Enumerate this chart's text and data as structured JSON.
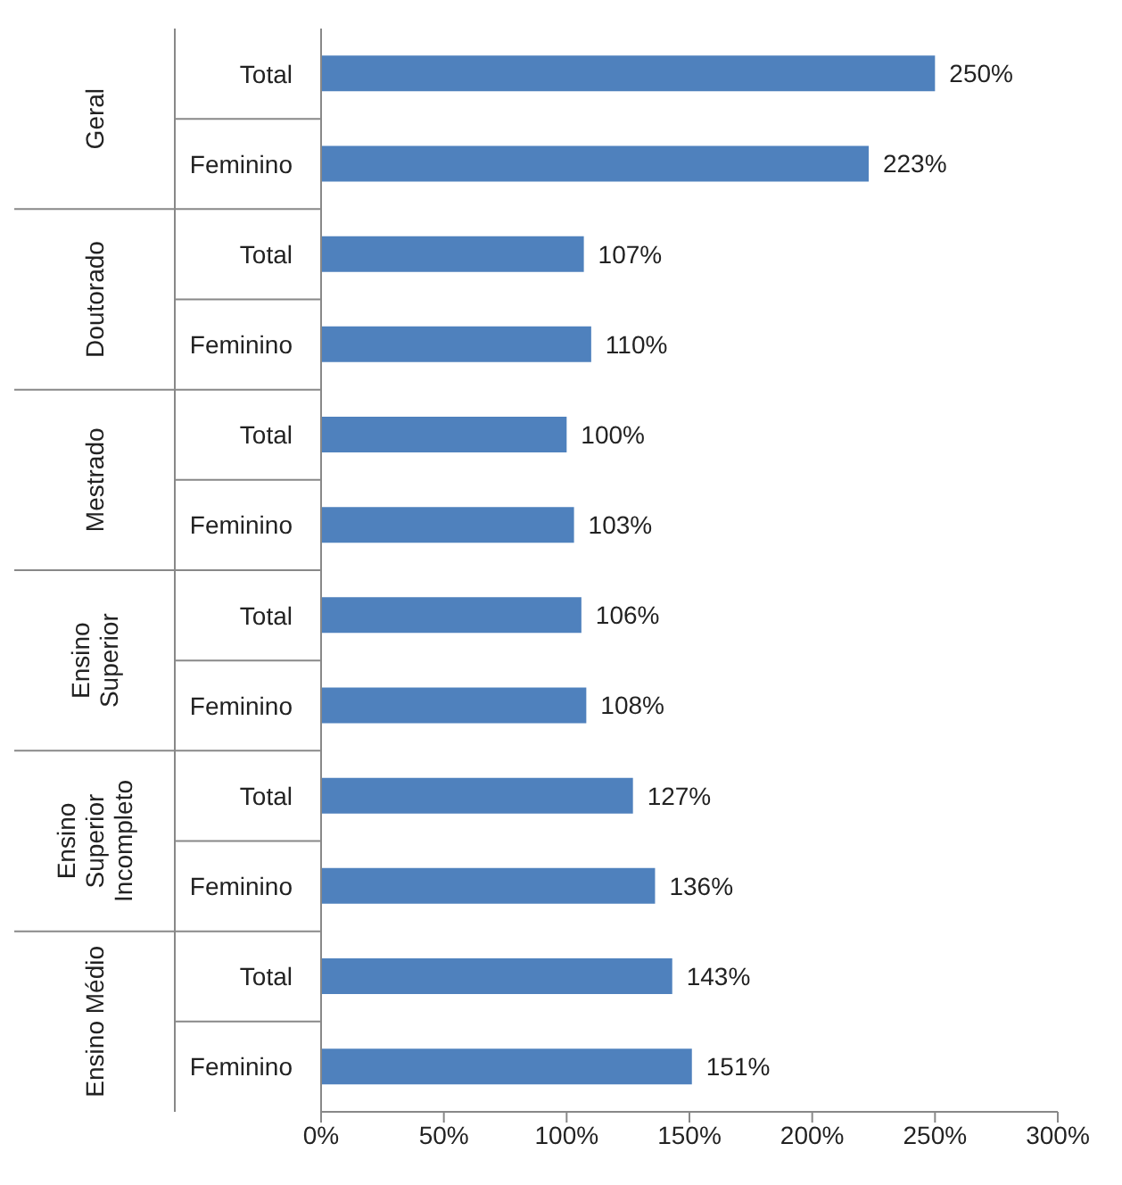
{
  "chart_data": {
    "type": "bar",
    "orientation": "horizontal",
    "categories": [
      "Total",
      "Feminino",
      "Total",
      "Feminino",
      "Total",
      "Feminino",
      "Total",
      "Feminino",
      "Total",
      "Feminino",
      "Total",
      "Feminino"
    ],
    "values": [
      250,
      223,
      107,
      110,
      100,
      103,
      106,
      108,
      127,
      136,
      143,
      151
    ],
    "value_labels": [
      "250%",
      "223%",
      "107%",
      "110%",
      "100%",
      "103%",
      "106%",
      "108%",
      "127%",
      "136%",
      "143%",
      "151%"
    ],
    "color": "#4f81bd",
    "xlim": [
      0,
      300
    ],
    "xticks": [
      {
        "value": 0,
        "label": "0%"
      },
      {
        "value": 50,
        "label": "50%"
      },
      {
        "value": 100,
        "label": "100%"
      },
      {
        "value": 150,
        "label": "150%"
      },
      {
        "value": 200,
        "label": "200%"
      },
      {
        "value": 250,
        "label": "250%"
      },
      {
        "value": 300,
        "label": "300%"
      }
    ],
    "annotations": [
      "Geral",
      "Doutorado",
      "Mestrado",
      "Ensino Superior",
      "Ensino Superior Incompleto",
      "Ensino Médio"
    ],
    "grid": false,
    "legend": false
  }
}
